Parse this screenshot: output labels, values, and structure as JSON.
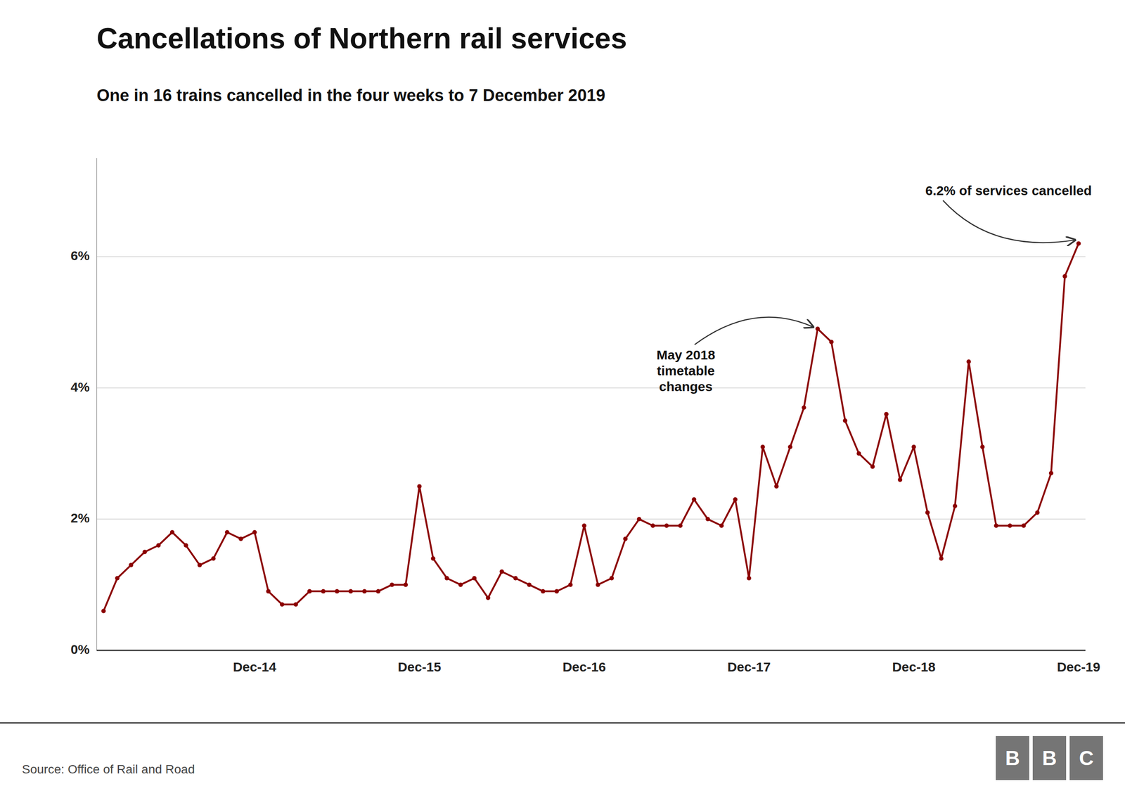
{
  "chart_data": {
    "type": "line",
    "title": "Cancellations of Northern rail services",
    "subtitle": "One in 16 trains cancelled in the four weeks to 7 December 2019",
    "source": "Source: Office of Rail and Road",
    "logo": "BBC",
    "color": "#8B0000",
    "marker": "circle",
    "grid": true,
    "categories": [
      null,
      null,
      null,
      null,
      null,
      null,
      null,
      null,
      null,
      null,
      null,
      "Dec-14",
      null,
      null,
      null,
      null,
      null,
      null,
      null,
      null,
      null,
      null,
      null,
      "Dec-15",
      null,
      null,
      null,
      null,
      null,
      null,
      null,
      null,
      null,
      null,
      null,
      "Dec-16",
      null,
      null,
      null,
      null,
      null,
      null,
      null,
      null,
      null,
      null,
      null,
      "Dec-17",
      null,
      null,
      null,
      null,
      null,
      null,
      null,
      null,
      null,
      null,
      null,
      "Dec-18",
      null,
      null,
      null,
      null,
      null,
      null,
      null,
      null,
      null,
      null,
      null,
      "Dec-19"
    ],
    "values": [
      0.006,
      0.011,
      0.013,
      0.015,
      0.016,
      0.018,
      0.016,
      0.013,
      0.014,
      0.018,
      0.017,
      0.018,
      0.009,
      0.007,
      0.007,
      0.009,
      0.009,
      0.009,
      0.009,
      0.009,
      0.009,
      0.01,
      0.01,
      0.025,
      0.014,
      0.011,
      0.01,
      0.011,
      0.008,
      0.012,
      0.011,
      0.01,
      0.009,
      0.009,
      0.01,
      0.019,
      0.01,
      0.011,
      0.017,
      0.02,
      0.019,
      0.019,
      0.019,
      0.023,
      0.02,
      0.019,
      0.023,
      0.011,
      0.031,
      0.025,
      0.031,
      0.037,
      0.049,
      0.047,
      0.035,
      0.03,
      0.028,
      0.036,
      0.026,
      0.031,
      0.021,
      0.014,
      0.022,
      0.044,
      0.031,
      0.019,
      0.019,
      0.019,
      0.021,
      0.027,
      0.057,
      0.062
    ],
    "ylim": [
      0.0,
      0.075
    ],
    "yticks": [
      {
        "value": 0.0,
        "label": "0%"
      },
      {
        "value": 0.02,
        "label": "2%"
      },
      {
        "value": 0.04,
        "label": "4%"
      },
      {
        "value": 0.06,
        "label": "6%"
      }
    ],
    "annotations": [
      {
        "text": "May 2018\ntimetable\nchanges",
        "x": 52,
        "y": 0.049
      },
      {
        "text": "6.2% of services cancelled",
        "x": 71,
        "y": 0.062
      }
    ]
  }
}
